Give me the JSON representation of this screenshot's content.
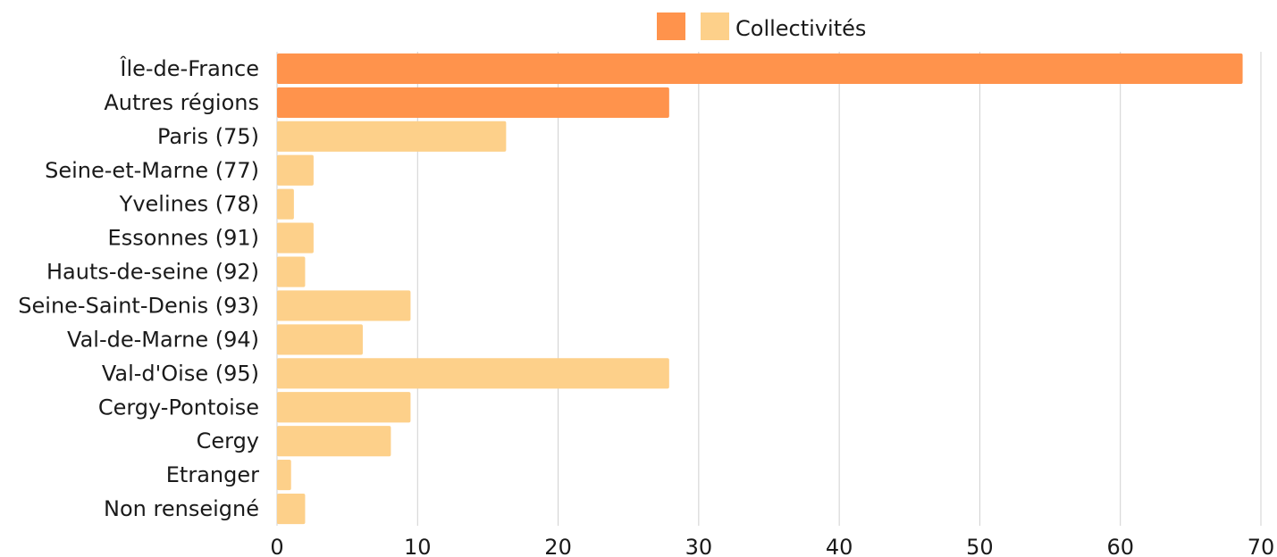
{
  "chart_data": {
    "type": "bar",
    "orientation": "horizontal",
    "categories": [
      "Île-de-France",
      "Autres régions",
      "Paris (75)",
      "Seine-et-Marne (77)",
      "Yvelines (78)",
      "Essonnes (91)",
      "Hauts-de-seine (92)",
      "Seine-Saint-Denis (93)",
      "Val-de-Marne (94)",
      "Val-d'Oise (95)",
      "Cergy-Pontoise",
      "Cergy",
      "Etranger",
      "Non renseigné"
    ],
    "values": [
      68.7,
      27.9,
      16.3,
      2.6,
      1.2,
      2.6,
      2.0,
      9.5,
      6.1,
      27.9,
      9.5,
      8.1,
      1.0,
      2.0
    ],
    "bar_groups": [
      0,
      0,
      1,
      1,
      1,
      1,
      1,
      1,
      1,
      1,
      1,
      1,
      1,
      1
    ],
    "legend": [
      {
        "name": "",
        "color": "#FF934C"
      },
      {
        "name": "Collectivités",
        "color": "#FDD08A"
      }
    ],
    "xlim": [
      0,
      70
    ],
    "xticks": [
      0,
      10,
      20,
      30,
      40,
      50,
      60,
      70
    ],
    "grid": true,
    "legend_position": "top"
  }
}
